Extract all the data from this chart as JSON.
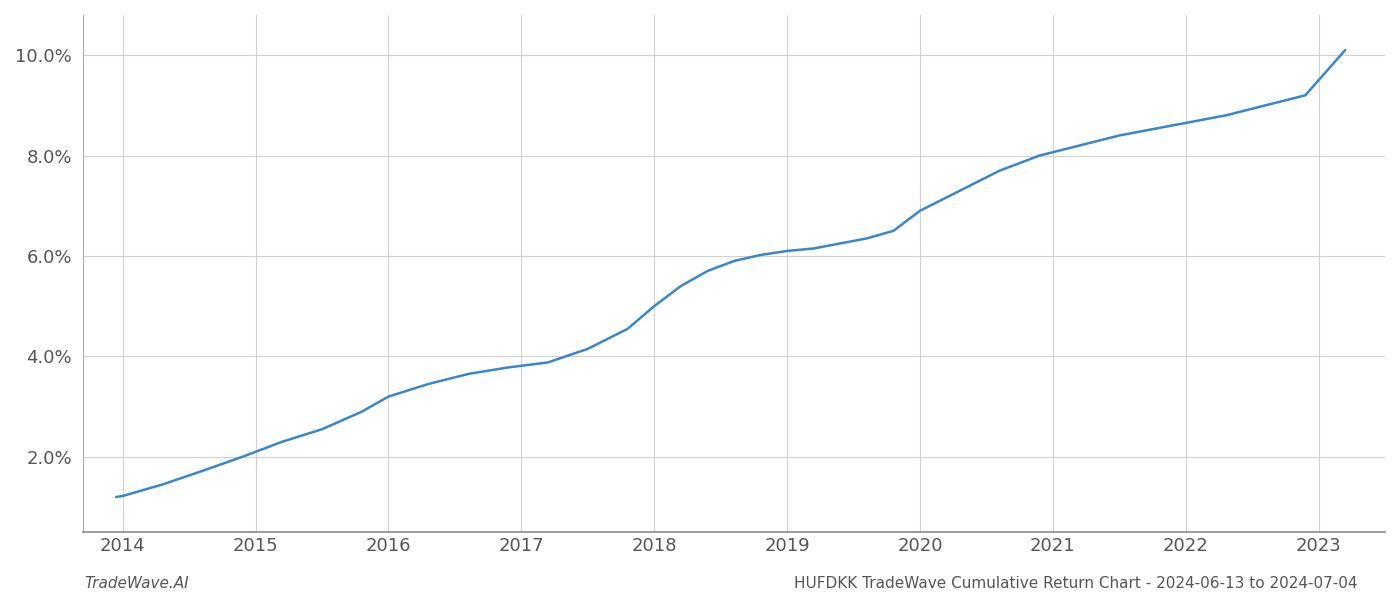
{
  "x_years": [
    2013.95,
    2014.0,
    2014.3,
    2014.6,
    2014.9,
    2015.2,
    2015.5,
    2015.8,
    2016.0,
    2016.3,
    2016.6,
    2016.9,
    2017.2,
    2017.5,
    2017.8,
    2018.0,
    2018.2,
    2018.4,
    2018.6,
    2018.8,
    2019.0,
    2019.2,
    2019.4,
    2019.6,
    2019.8,
    2020.0,
    2020.3,
    2020.6,
    2020.9,
    2021.2,
    2021.5,
    2021.8,
    2022.0,
    2022.3,
    2022.6,
    2022.9,
    2023.0,
    2023.2
  ],
  "y_values": [
    1.2,
    1.22,
    1.45,
    1.72,
    2.0,
    2.3,
    2.55,
    2.9,
    3.2,
    3.45,
    3.65,
    3.78,
    3.88,
    4.15,
    4.55,
    5.0,
    5.4,
    5.7,
    5.9,
    6.02,
    6.1,
    6.15,
    6.25,
    6.35,
    6.5,
    6.9,
    7.3,
    7.7,
    8.0,
    8.2,
    8.4,
    8.55,
    8.65,
    8.8,
    9.0,
    9.2,
    9.5,
    10.1
  ],
  "line_color": "#3a86c8",
  "line_width": 1.8,
  "background_color": "#ffffff",
  "grid_color": "#d0d0d0",
  "xlim": [
    2013.7,
    2023.5
  ],
  "ylim": [
    0.5,
    10.8
  ],
  "yticks": [
    2.0,
    4.0,
    6.0,
    8.0,
    10.0
  ],
  "xticks": [
    2014,
    2015,
    2016,
    2017,
    2018,
    2019,
    2020,
    2021,
    2022,
    2023
  ],
  "footer_left": "TradeWave.AI",
  "footer_right": "HUFDKK TradeWave Cumulative Return Chart - 2024-06-13 to 2024-07-04",
  "footer_fontsize": 11,
  "tick_fontsize": 13,
  "spine_color": "#888888",
  "left_spine_color": "#aaaaaa"
}
